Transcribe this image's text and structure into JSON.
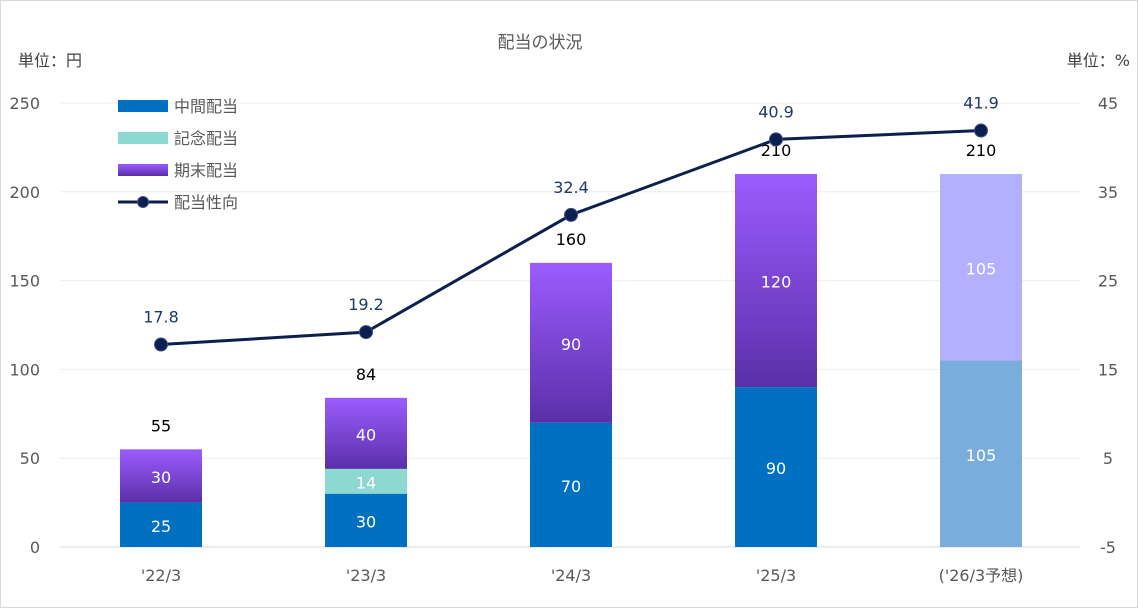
{
  "chart_data": {
    "type": "bar",
    "title": "配当の状況",
    "y_left_unit": "単位：円",
    "y_right_unit": "単位：%",
    "categories": [
      "'22/3",
      "'23/3",
      "'24/3",
      "'25/3",
      "('26/3予想)"
    ],
    "ylim_left": [
      0,
      250
    ],
    "yticks_left": [
      "0",
      "50",
      "100",
      "150",
      "200",
      "250"
    ],
    "ylim_right": [
      -5,
      45
    ],
    "yticks_right": [
      "-5",
      "5",
      "15",
      "25",
      "35",
      "45"
    ],
    "grid": true,
    "legend_position": "top-left",
    "series": [
      {
        "name": "中間配当",
        "kind": "bar",
        "stack": true,
        "values": [
          25,
          30,
          70,
          90,
          105
        ],
        "labels": [
          "25",
          "30",
          "70",
          "90",
          "105"
        ]
      },
      {
        "name": "記念配当",
        "kind": "bar",
        "stack": true,
        "values": [
          0,
          14,
          0,
          0,
          0
        ],
        "labels": [
          "",
          "14",
          "",
          "",
          ""
        ]
      },
      {
        "name": "期末配当",
        "kind": "bar",
        "stack": true,
        "values": [
          30,
          40,
          90,
          120,
          105
        ],
        "labels": [
          "30",
          "40",
          "90",
          "120",
          "105"
        ]
      },
      {
        "name": "配当性向",
        "kind": "line",
        "axis": "right",
        "values": [
          17.8,
          19.2,
          32.4,
          40.9,
          41.9
        ],
        "labels": [
          "17.8",
          "19.2",
          "32.4",
          "40.9",
          "41.9"
        ]
      }
    ],
    "totals": [
      "55",
      "84",
      "160",
      "210",
      "210"
    ],
    "colors": {
      "interim": "#0070c0",
      "commemorative": "#8dd9d2",
      "year_end_top": "#9b5cff",
      "year_end_bottom": "#5b2fa8",
      "forecast_interim": "#7aaddc",
      "forecast_year_end": "#b3b0ff",
      "line": "#0d1f4e",
      "line_label": "#1f3864",
      "axis_text": "#595959",
      "grid": "#eeeeee"
    }
  }
}
